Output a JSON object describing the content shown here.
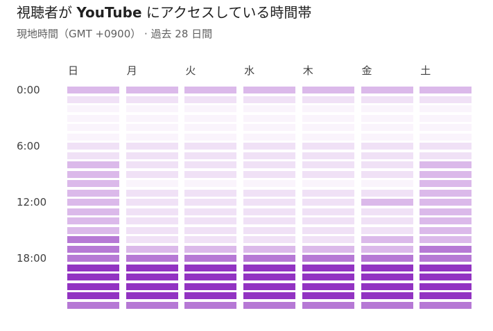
{
  "header": {
    "title_prefix": "視聴者が ",
    "title_brand": "YouTube",
    "title_suffix": " にアクセスしている時間帯",
    "subtitle": "現地時間（GMT +0900） · 過去 28 日間"
  },
  "chart_data": {
    "type": "heatmap",
    "title": "視聴者が YouTube にアクセスしている時間帯",
    "x_categories": [
      "日",
      "月",
      "火",
      "水",
      "木",
      "金",
      "土"
    ],
    "y_labels": [
      "0:00",
      "6:00",
      "12:00",
      "18:00"
    ],
    "hours": [
      0,
      1,
      2,
      3,
      4,
      5,
      6,
      7,
      8,
      9,
      10,
      11,
      12,
      13,
      14,
      15,
      16,
      17,
      18,
      19,
      20,
      21,
      22,
      23
    ],
    "intensity_levels": 6,
    "values": [
      [
        3,
        3,
        3,
        3,
        3,
        3,
        3
      ],
      [
        2,
        2,
        2,
        2,
        2,
        2,
        2
      ],
      [
        1,
        1,
        1,
        1,
        1,
        1,
        1
      ],
      [
        1,
        1,
        1,
        1,
        1,
        1,
        1
      ],
      [
        1,
        1,
        1,
        1,
        1,
        1,
        1
      ],
      [
        1,
        1,
        1,
        1,
        1,
        1,
        1
      ],
      [
        2,
        2,
        2,
        2,
        2,
        2,
        2
      ],
      [
        2,
        2,
        2,
        2,
        2,
        2,
        2
      ],
      [
        3,
        2,
        2,
        2,
        2,
        2,
        3
      ],
      [
        3,
        2,
        2,
        2,
        2,
        2,
        3
      ],
      [
        3,
        1,
        1,
        1,
        1,
        1,
        3
      ],
      [
        3,
        2,
        2,
        2,
        2,
        2,
        3
      ],
      [
        3,
        2,
        2,
        2,
        2,
        3,
        3
      ],
      [
        3,
        2,
        2,
        2,
        2,
        2,
        3
      ],
      [
        3,
        2,
        2,
        2,
        2,
        2,
        3
      ],
      [
        3,
        2,
        2,
        2,
        2,
        2,
        3
      ],
      [
        4,
        2,
        2,
        2,
        2,
        3,
        3
      ],
      [
        4,
        3,
        3,
        3,
        3,
        3,
        4
      ],
      [
        4,
        4,
        4,
        4,
        4,
        4,
        4
      ],
      [
        5,
        5,
        5,
        5,
        5,
        5,
        5
      ],
      [
        5,
        5,
        5,
        5,
        5,
        5,
        5
      ],
      [
        5,
        5,
        5,
        5,
        5,
        5,
        5
      ],
      [
        5,
        5,
        5,
        5,
        5,
        5,
        5
      ],
      [
        4,
        4,
        4,
        4,
        4,
        4,
        4
      ]
    ],
    "palette": [
      "#ffffff",
      "#faf4fc",
      "#f0e1f6",
      "#dbb9ea",
      "#b679d5",
      "#9233c2"
    ],
    "legend": "none",
    "grid": false
  }
}
